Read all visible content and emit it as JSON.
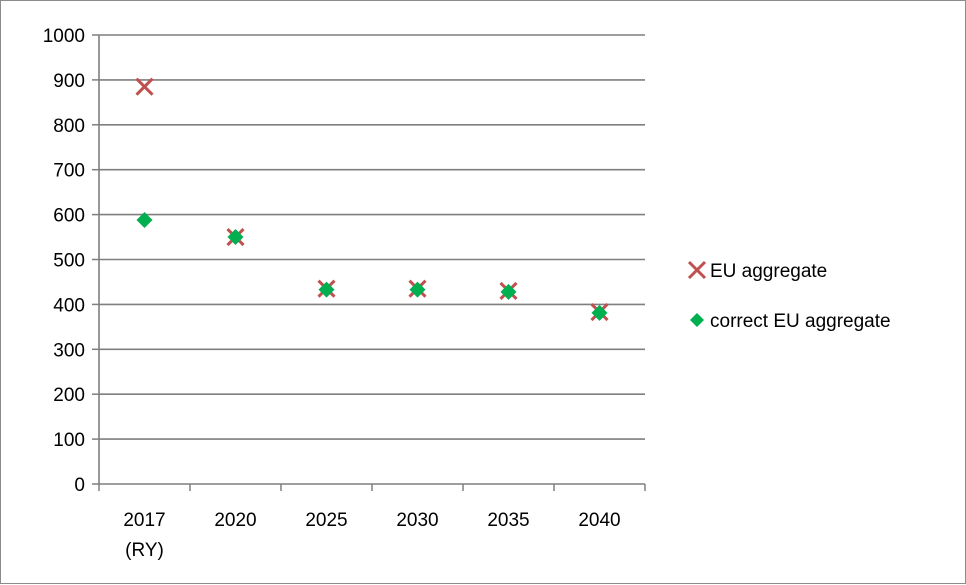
{
  "chart_data": {
    "type": "scatter",
    "categories": [
      [
        "2017",
        "(RY)"
      ],
      [
        "2020"
      ],
      [
        "2025"
      ],
      [
        "2030"
      ],
      [
        "2035"
      ],
      [
        "2040"
      ]
    ],
    "series": [
      {
        "name": "EU aggregate",
        "marker": "x",
        "color": "#c0504d",
        "values": [
          885,
          550,
          435,
          435,
          430,
          383
        ]
      },
      {
        "name": "correct EU aggregate",
        "marker": "diamond",
        "color": "#00b050",
        "values": [
          588,
          550,
          433,
          433,
          428,
          381
        ]
      }
    ],
    "ylim": [
      0,
      1000
    ],
    "yticks": [
      0,
      100,
      200,
      300,
      400,
      500,
      600,
      700,
      800,
      900,
      1000
    ],
    "grid": true,
    "legend_position": "right",
    "title": "",
    "xlabel": "",
    "ylabel": ""
  }
}
